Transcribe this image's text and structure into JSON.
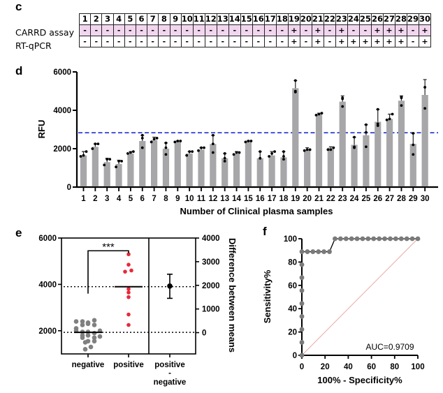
{
  "panels": {
    "c": {
      "label": "c",
      "row_labels": [
        "CARRD assay",
        "RT-qPCR"
      ],
      "columns": [
        "1",
        "2",
        "3",
        "4",
        "5",
        "6",
        "7",
        "8",
        "9",
        "10",
        "11",
        "12",
        "13",
        "14",
        "15",
        "16",
        "17",
        "18",
        "19",
        "20",
        "21",
        "22",
        "23",
        "24",
        "25",
        "26",
        "27",
        "28",
        "29",
        "30"
      ],
      "carrd": [
        "-",
        "-",
        "-",
        "-",
        "-",
        "-",
        "-",
        "-",
        "-",
        "-",
        "-",
        "-",
        "-",
        "-",
        "-",
        "-",
        "-",
        "-",
        "+",
        "-",
        "+",
        "-",
        "+",
        "-",
        "-",
        "+",
        "+",
        "+",
        "-",
        "+"
      ],
      "rtqpcr": [
        "-",
        "-",
        "-",
        "-",
        "-",
        "-",
        "-",
        "-",
        "-",
        "-",
        "-",
        "-",
        "-",
        "-",
        "-",
        "-",
        "-",
        "-",
        "+",
        "-",
        "+",
        "-",
        "+",
        "+",
        "+",
        "+",
        "+",
        "+",
        "-",
        "+"
      ],
      "carrd_row_color": "#f2d6ef"
    },
    "d": {
      "label": "d"
    },
    "e": {
      "label": "e"
    },
    "f": {
      "label": "f"
    }
  },
  "chart_data": [
    {
      "panel": "d",
      "type": "bar",
      "title": "",
      "xlabel": "Number of Clinical plasma samples",
      "ylabel": "RFU",
      "ylim": [
        0,
        6000
      ],
      "yticks": [
        0,
        2000,
        4000,
        6000
      ],
      "categories": [
        "1",
        "2",
        "3",
        "4",
        "5",
        "6",
        "7",
        "8",
        "9",
        "10",
        "11",
        "12",
        "13",
        "14",
        "15",
        "16",
        "17",
        "18",
        "19",
        "20",
        "21",
        "22",
        "23",
        "24",
        "25",
        "26",
        "27",
        "28",
        "29",
        "30"
      ],
      "values": [
        1650,
        2100,
        1300,
        1200,
        1750,
        2400,
        2450,
        2000,
        2350,
        1750,
        1950,
        2250,
        1500,
        1750,
        2350,
        1500,
        1650,
        1550,
        5150,
        1950,
        3800,
        2050,
        4450,
        2200,
        2700,
        3400,
        3550,
        4500,
        2250,
        4800
      ],
      "error_upper": [
        1850,
        2250,
        1500,
        1400,
        1850,
        2700,
        2600,
        2300,
        2400,
        1850,
        2050,
        2700,
        1750,
        1850,
        2400,
        1850,
        1850,
        1850,
        5550,
        2050,
        3850,
        2100,
        4750,
        2600,
        3250,
        4050,
        3800,
        4750,
        2800,
        5600
      ],
      "points": [
        [
          1600,
          1650,
          1850
        ],
        [
          2000,
          2250,
          2250
        ],
        [
          1150,
          1450,
          1450
        ],
        [
          1050,
          1350,
          1350
        ],
        [
          1750,
          1800,
          1850
        ],
        [
          2050,
          2550,
          2700
        ],
        [
          2350,
          2550,
          2500
        ],
        [
          1700,
          2050,
          2300
        ],
        [
          2350,
          2400,
          2400
        ],
        [
          1650,
          1850,
          1850
        ],
        [
          1900,
          2050,
          2050
        ],
        [
          1800,
          2250,
          2700
        ],
        [
          1350,
          1500,
          1750
        ],
        [
          1700,
          1800,
          1800
        ],
        [
          2350,
          2400,
          2400
        ],
        [
          1500,
          1500,
          1850
        ],
        [
          1600,
          1750,
          1850
        ],
        [
          1450,
          1600,
          1850
        ],
        [
          4950,
          5000,
          5550
        ],
        [
          1900,
          1950,
          1950
        ],
        [
          3750,
          3800,
          3850
        ],
        [
          1950,
          1950,
          2050
        ],
        [
          4200,
          4600,
          4650
        ],
        [
          2050,
          2100,
          2600
        ],
        [
          2100,
          2850,
          3250
        ],
        [
          3200,
          3300,
          4050
        ],
        [
          3500,
          3550,
          3800
        ],
        [
          4250,
          4650,
          4700
        ],
        [
          1700,
          2200,
          2800
        ],
        [
          4100,
          5200,
          5200
        ]
      ],
      "threshold": 2830,
      "bar_color": "#a7a7aa",
      "threshold_color": "#1f2fd1"
    },
    {
      "panel": "e",
      "type": "scatter",
      "categories": [
        "negative",
        "positive",
        "positive\n-\nnegative"
      ],
      "category_labels": [
        "negative",
        "positive",
        "positive",
        "-",
        "negative"
      ],
      "ylim_left": [
        1000,
        6000
      ],
      "yticks_left": [
        2000,
        4000,
        6000
      ],
      "ylim_right": [
        -900,
        4000
      ],
      "yticks_right": [
        0,
        1000,
        2000,
        3000,
        4000
      ],
      "ylabel_right": "Difference between means",
      "negative_values": [
        2400,
        2400,
        2350,
        2450,
        2250,
        2250,
        2300,
        2100,
        1950,
        2000,
        1950,
        2000,
        1900,
        1800,
        1800,
        1750,
        1700,
        1700,
        1550,
        1550,
        1500,
        1300,
        1200
      ],
      "positive_values": [
        5300,
        4850,
        4550,
        4600,
        3800,
        3650,
        3450,
        2700,
        2250
      ],
      "negative_mean": 1930,
      "positive_mean": 3900,
      "difference_mean": 1970,
      "difference_ci": [
        1450,
        2470
      ],
      "significance": "***",
      "negative_color": "#808080",
      "positive_color": "#e8293c"
    },
    {
      "panel": "f",
      "type": "line",
      "xlabel": "100% - Specificity%",
      "ylabel": "Sensitivity%",
      "xlim": [
        0,
        100
      ],
      "ylim": [
        0,
        100
      ],
      "xticks": [
        0,
        20,
        40,
        60,
        80,
        100
      ],
      "yticks": [
        0,
        20,
        40,
        60,
        80,
        100
      ],
      "annotation": "AUC=0.9709",
      "x": [
        0,
        0,
        0,
        0,
        0,
        0,
        0,
        0,
        0,
        4.76,
        9.52,
        14.29,
        19.05,
        23.81,
        28.57,
        33.33,
        38.1,
        42.86,
        47.62,
        52.38,
        57.14,
        61.9,
        66.67,
        71.43,
        76.19,
        80.95,
        85.71,
        90.48,
        95.24,
        100
      ],
      "y": [
        0,
        11.11,
        22.22,
        33.33,
        44.44,
        55.56,
        66.67,
        77.78,
        88.89,
        88.89,
        88.89,
        88.89,
        88.89,
        88.89,
        100,
        100,
        100,
        100,
        100,
        100,
        100,
        100,
        100,
        100,
        100,
        100,
        100,
        100,
        100,
        100
      ],
      "reference_line": [
        [
          0,
          0
        ],
        [
          100,
          100
        ]
      ],
      "point_color": "#7a7a7a",
      "reference_color": "#e8a0a0"
    }
  ]
}
